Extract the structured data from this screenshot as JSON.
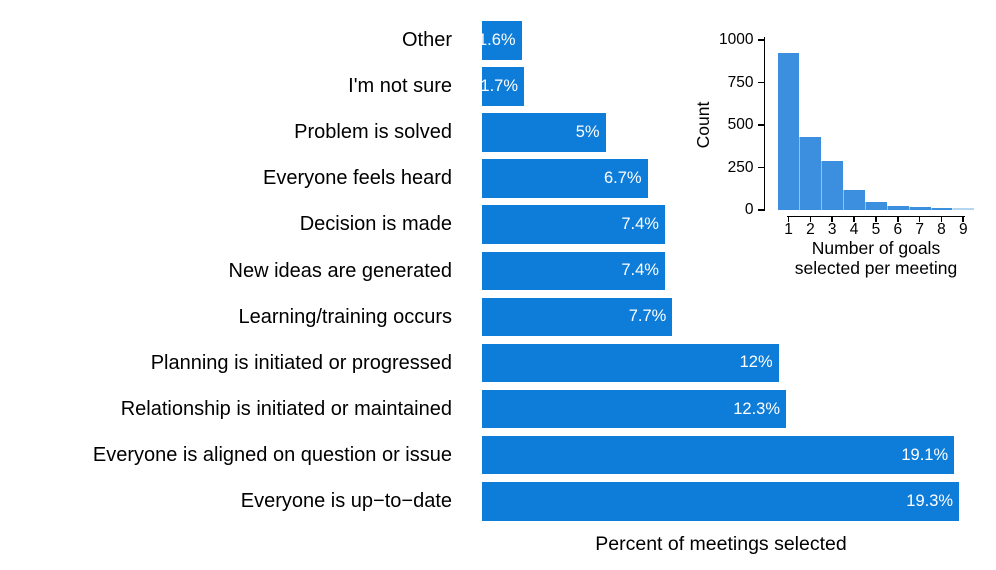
{
  "figure": {
    "background": "#ffffff",
    "text_color": "#000000"
  },
  "chart_data": [
    {
      "type": "bar",
      "orientation": "horizontal",
      "title": "",
      "xlabel": "Percent of meetings selected",
      "ylabel": "",
      "categories": [
        "Other",
        "I'm not sure",
        "Problem is solved",
        "Everyone feels heard",
        "Decision is made",
        "New ideas are generated",
        "Learning/training occurs",
        "Planning is initiated or progressed",
        "Relationship is initiated or maintained",
        "Everyone is aligned on question or issue",
        "Everyone is up−to−date"
      ],
      "values": [
        1.6,
        1.7,
        5,
        6.7,
        7.4,
        7.4,
        7.7,
        12,
        12.3,
        19.1,
        19.3
      ],
      "value_labels": [
        "1.6%",
        "1.7%",
        "5%",
        "6.7%",
        "7.4%",
        "7.4%",
        "7.7%",
        "12%",
        "12.3%",
        "19.1%",
        "19.3%"
      ],
      "xlim": [
        0,
        19.3
      ],
      "grid": false,
      "bar_color": "#0e7cd9",
      "value_label_color": "#ffffff"
    },
    {
      "type": "histogram",
      "title": "",
      "ylabel": "Count",
      "xlabel_lines": [
        "Number of goals",
        "selected per meeting"
      ],
      "x": [
        1,
        2,
        3,
        4,
        5,
        6,
        7,
        8,
        9
      ],
      "counts": [
        925,
        430,
        290,
        120,
        45,
        25,
        20,
        10,
        4
      ],
      "yticks": [
        0,
        250,
        500,
        750,
        1000
      ],
      "ylim": [
        0,
        1000
      ],
      "grid": false,
      "legend": "none",
      "bar_color": "#3c8ede",
      "faded_bar_color": "#b3d7f2"
    }
  ]
}
